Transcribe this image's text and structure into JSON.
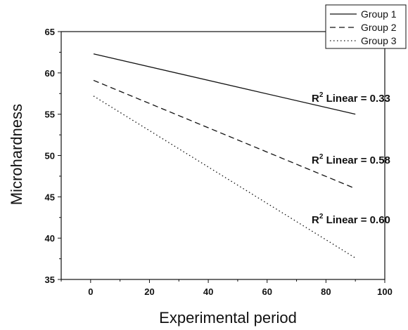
{
  "chart_data": {
    "type": "line",
    "xlabel": "Experimental period",
    "ylabel": "Microhardness",
    "xlim": [
      -10,
      100
    ],
    "ylim": [
      35,
      65
    ],
    "xticks": [
      0,
      20,
      40,
      60,
      80,
      100
    ],
    "yticks": [
      35,
      40,
      45,
      50,
      55,
      60,
      65
    ],
    "grid": false,
    "legend_position": "top-right",
    "series": [
      {
        "name": "Group 1",
        "style": "solid",
        "x": [
          1,
          90
        ],
        "y": [
          62.3,
          55.0
        ]
      },
      {
        "name": "Group 2",
        "style": "dashed",
        "x": [
          1,
          90
        ],
        "y": [
          59.1,
          46.0
        ]
      },
      {
        "name": "Group 3",
        "style": "dotted",
        "x": [
          1,
          90
        ],
        "y": [
          57.2,
          37.6
        ]
      }
    ],
    "annotations": [
      {
        "prefix": "R",
        "sup": "2",
        "text": " Linear = 0.33"
      },
      {
        "prefix": "R",
        "sup": "2",
        "text": " Linear = 0.58"
      },
      {
        "prefix": "R",
        "sup": "2",
        "text": " Linear = 0.60"
      }
    ]
  }
}
